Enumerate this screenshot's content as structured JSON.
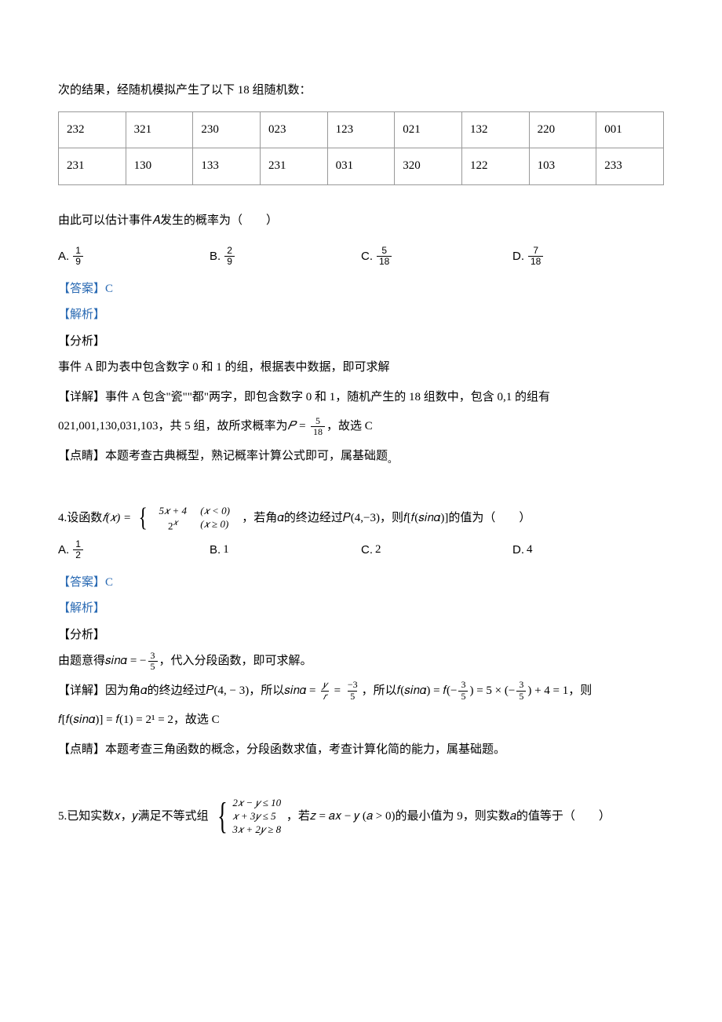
{
  "page": {
    "bg": "#ffffff",
    "text_color": "#000000",
    "accent_color": "#2a6ab3",
    "border_color": "#999999",
    "body_fontsize": 15,
    "table_fontsize": 15,
    "frac_fontsize": 12
  },
  "intro_line": "次的结果，经随机模拟产生了以下 18 组随机数：",
  "table": {
    "rows": [
      [
        "232",
        "321",
        "230",
        "023",
        "123",
        "021",
        "132",
        "220",
        "001"
      ],
      [
        "231",
        "130",
        "133",
        "231",
        "031",
        "320",
        "122",
        "103",
        "233"
      ]
    ]
  },
  "q3": {
    "estimate_line": "由此可以估计事件𝐴发生的概率为（　　）",
    "options": {
      "A": {
        "label": "A. ",
        "num": "1",
        "den": "9"
      },
      "B": {
        "label": "B. ",
        "num": "2",
        "den": "9"
      },
      "C": {
        "label": "C. ",
        "num": "5",
        "den": "18"
      },
      "D": {
        "label": "D. ",
        "num": "7",
        "den": "18"
      }
    },
    "answer_label": "【答案】C",
    "analysis_label": "【解析】",
    "fenxi_label": "【分析】",
    "fenxi_text": "事件 A 即为表中包含数字 0 和 1 的组，根据表中数据，即可求解",
    "detail_prefix": "【详解】事件 A 包含\"瓷\"\"都\"两字，即包含数字 0 和 1，随机产生的 18 组数中，包含 0,1 的组有",
    "detail_line2_a": "021,001,130,031,103，共 5 组，故所求概率为",
    "detail_P": "𝑃 =",
    "detail_frac": {
      "num": "5",
      "den": "18"
    },
    "detail_line2_b": "，故选 C",
    "dianjing": "【点睛】本题考查古典概型，熟记概率计算公式即可，属基础题",
    "dot": "。"
  },
  "q4": {
    "stem_a": "4.设函数",
    "stem_fx": "𝑓(𝑥) =",
    "piece1_expr": "5𝑥 + 4",
    "piece1_cond": "(𝑥 < 0)",
    "piece2_expr": "2",
    "piece2_sup": "𝑥",
    "piece2_cond": "(𝑥 ≥ 0)",
    "stem_b": "，若角𝛼的终边经过𝑃(4,−3)，则𝑓[𝑓(𝑠𝑖𝑛𝛼)]的值为（　　）",
    "options": {
      "A": {
        "label": "A. ",
        "num": "1",
        "den": "2"
      },
      "B": {
        "label": "B. ",
        "text": "1"
      },
      "C": {
        "label": "C. ",
        "text": "2"
      },
      "D": {
        "label": "D. ",
        "text": "4"
      }
    },
    "answer_label": "【答案】C",
    "analysis_label": "【解析】",
    "fenxi_label": "【分析】",
    "fenxi_a": "由题意得𝑠𝑖𝑛𝛼 = −",
    "fenxi_frac": {
      "num": "3",
      "den": "5"
    },
    "fenxi_b": "，代入分段函数，即可求解。",
    "detail_a": "【详解】因为角𝛼的终边经过𝑃(4, − 3)，所以𝑠𝑖𝑛𝛼 =",
    "detail_frac1": {
      "num": "𝑦",
      "den": "𝑟"
    },
    "eq1": "=",
    "detail_frac2": {
      "num": "−3",
      "den": "5"
    },
    "detail_b": "，所以𝑓(𝑠𝑖𝑛𝛼) = 𝑓(−",
    "detail_frac3": {
      "num": "3",
      "den": "5"
    },
    "detail_c": ") = 5 × (−",
    "detail_frac4": {
      "num": "3",
      "den": "5"
    },
    "detail_d": ") + 4 = 1，则",
    "detail_line2": "𝑓[𝑓(𝑠𝑖𝑛𝛼)] = 𝑓(1) = 2¹ = 2，故选 C",
    "dianjing": "【点睛】本题考查三角函数的概念，分段函数求值，考查计算化简的能力，属基础题。"
  },
  "q5": {
    "stem_a": "5.已知实数𝑥，𝑦满足不等式组",
    "c1": "2𝑥 − 𝑦 ≤ 10",
    "c2": "𝑥 + 3𝑦 ≤ 5",
    "c3": "3𝑥 + 2𝑦 ≥ 8",
    "stem_b": "，若𝑧 = 𝑎𝑥 − 𝑦  (𝑎 > 0)的最小值为 9，则实数𝑎的值等于（　　）"
  }
}
